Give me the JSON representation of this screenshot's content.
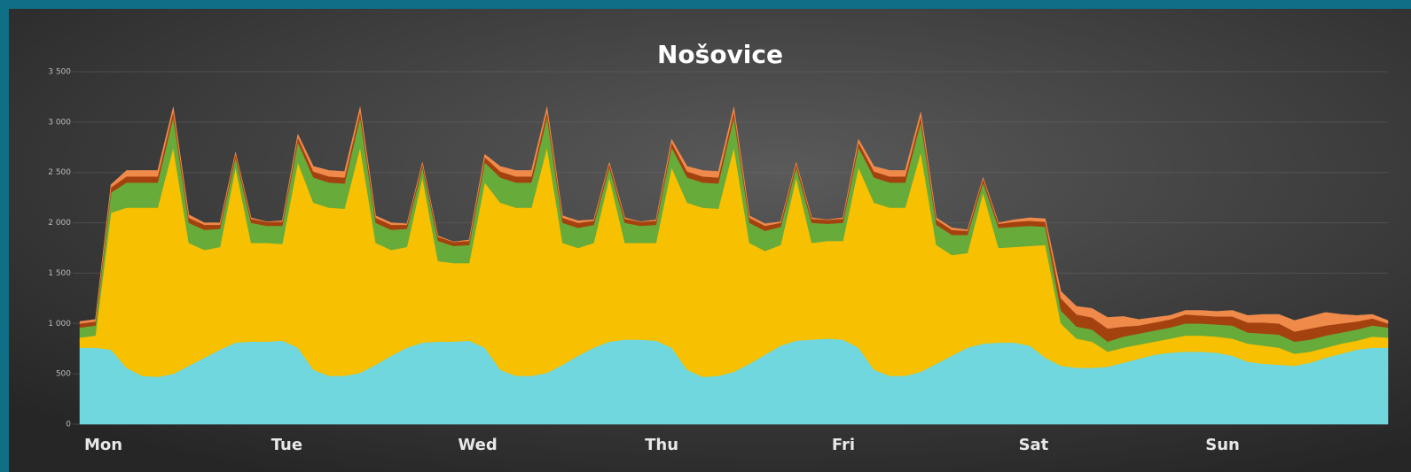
{
  "chart_data": {
    "type": "stacked-area",
    "title": "Nošovice",
    "categories": [
      "Mon",
      null,
      null,
      null,
      null,
      null,
      null,
      null,
      null,
      null,
      null,
      null,
      "Tue",
      null,
      null,
      null,
      null,
      null,
      null,
      null,
      null,
      null,
      null,
      null,
      "Wed",
      null,
      null,
      null,
      null,
      null,
      null,
      null,
      null,
      null,
      null,
      null,
      "Thu",
      null,
      null,
      null,
      null,
      null,
      null,
      null,
      null,
      null,
      null,
      null,
      "Fri",
      null,
      null,
      null,
      null,
      null,
      null,
      null,
      null,
      null,
      null,
      null,
      "Sat",
      null,
      null,
      null,
      null,
      null,
      null,
      null,
      null,
      null,
      null,
      null,
      "Sun",
      null,
      null,
      null,
      null,
      null,
      null,
      null,
      null,
      null,
      null,
      null,
      null
    ],
    "series": [
      {
        "color": "#6fd7dd",
        "values": [
          760,
          760,
          740,
          560,
          480,
          470,
          500,
          580,
          660,
          740,
          810,
          820,
          820,
          830,
          760,
          540,
          480,
          480,
          510,
          590,
          680,
          760,
          810,
          820,
          820,
          830,
          760,
          540,
          480,
          480,
          510,
          590,
          680,
          760,
          820,
          840,
          840,
          830,
          760,
          540,
          470,
          480,
          520,
          600,
          690,
          780,
          830,
          840,
          850,
          840,
          760,
          540,
          480,
          480,
          520,
          600,
          680,
          760,
          800,
          810,
          810,
          780,
          660,
          580,
          560,
          560,
          570,
          610,
          650,
          690,
          710,
          720,
          720,
          710,
          680,
          620,
          600,
          590,
          580,
          610,
          660,
          700,
          740,
          760,
          760
        ]
      },
      {
        "color": "#f7c000",
        "values": [
          100,
          120,
          1360,
          1590,
          1670,
          1680,
          2250,
          1220,
          1070,
          1020,
          1740,
          980,
          980,
          960,
          1840,
          1660,
          1670,
          1660,
          2240,
          1210,
          1050,
          1000,
          1640,
          800,
          780,
          770,
          1640,
          1660,
          1670,
          1670,
          2240,
          1210,
          1070,
          1040,
          1630,
          960,
          960,
          970,
          1790,
          1660,
          1680,
          1660,
          2230,
          1200,
          1030,
          1000,
          1620,
          960,
          970,
          980,
          1790,
          1660,
          1670,
          1670,
          2180,
          1180,
          1000,
          940,
          1500,
          940,
          950,
          990,
          1120,
          420,
          290,
          260,
          150,
          150,
          140,
          130,
          140,
          160,
          160,
          160,
          170,
          180,
          180,
          170,
          120,
          110,
          100,
          100,
          90,
          110,
          100
        ]
      },
      {
        "color": "#67ab3a",
        "values": [
          100,
          100,
          200,
          250,
          250,
          250,
          300,
          200,
          200,
          180,
          100,
          200,
          170,
          180,
          200,
          250,
          250,
          250,
          300,
          200,
          200,
          180,
          100,
          200,
          170,
          180,
          200,
          250,
          250,
          250,
          300,
          200,
          200,
          180,
          100,
          200,
          170,
          180,
          200,
          250,
          250,
          250,
          300,
          200,
          200,
          180,
          100,
          200,
          170,
          180,
          200,
          250,
          250,
          250,
          300,
          200,
          200,
          180,
          100,
          200,
          200,
          200,
          180,
          130,
          120,
          120,
          100,
          110,
          110,
          110,
          110,
          120,
          120,
          120,
          130,
          110,
          120,
          130,
          120,
          120,
          120,
          110,
          110,
          110,
          100
        ]
      },
      {
        "color": "#a4420f",
        "values": [
          40,
          40,
          50,
          60,
          60,
          60,
          60,
          50,
          50,
          40,
          40,
          40,
          40,
          40,
          50,
          60,
          60,
          60,
          60,
          50,
          50,
          40,
          40,
          40,
          40,
          40,
          50,
          60,
          60,
          60,
          60,
          50,
          50,
          40,
          40,
          40,
          40,
          40,
          50,
          60,
          60,
          60,
          60,
          50,
          50,
          40,
          40,
          40,
          40,
          40,
          50,
          60,
          60,
          60,
          60,
          50,
          50,
          40,
          40,
          40,
          50,
          50,
          50,
          120,
          120,
          120,
          130,
          100,
          80,
          80,
          80,
          90,
          80,
          80,
          90,
          100,
          110,
          110,
          100,
          110,
          100,
          90,
          80,
          70,
          40
        ]
      },
      {
        "color": "#f08a4b",
        "values": [
          20,
          20,
          30,
          60,
          60,
          60,
          40,
          30,
          20,
          20,
          10,
          10,
          0,
          10,
          30,
          50,
          60,
          60,
          40,
          20,
          20,
          10,
          10,
          10,
          0,
          10,
          30,
          50,
          60,
          60,
          40,
          20,
          20,
          10,
          10,
          10,
          0,
          10,
          30,
          50,
          60,
          60,
          40,
          20,
          20,
          10,
          10,
          10,
          0,
          10,
          30,
          50,
          60,
          60,
          40,
          20,
          20,
          10,
          10,
          10,
          20,
          30,
          30,
          70,
          80,
          90,
          110,
          100,
          60,
          50,
          40,
          40,
          50,
          50,
          60,
          70,
          80,
          90,
          110,
          120,
          130,
          90,
          60,
          40,
          30
        ]
      }
    ],
    "ylim": [
      0,
      3500
    ],
    "yticks": [
      0,
      500,
      {
        "value": 1000,
        "label": "1 000"
      },
      {
        "value": 1500,
        "label": "1 500"
      },
      {
        "value": 2000,
        "label": "2 000"
      },
      {
        "value": 2500,
        "label": "2 500"
      },
      {
        "value": 3000,
        "label": "3 000"
      },
      {
        "value": 3500,
        "label": "3 500"
      }
    ],
    "grid": true
  }
}
